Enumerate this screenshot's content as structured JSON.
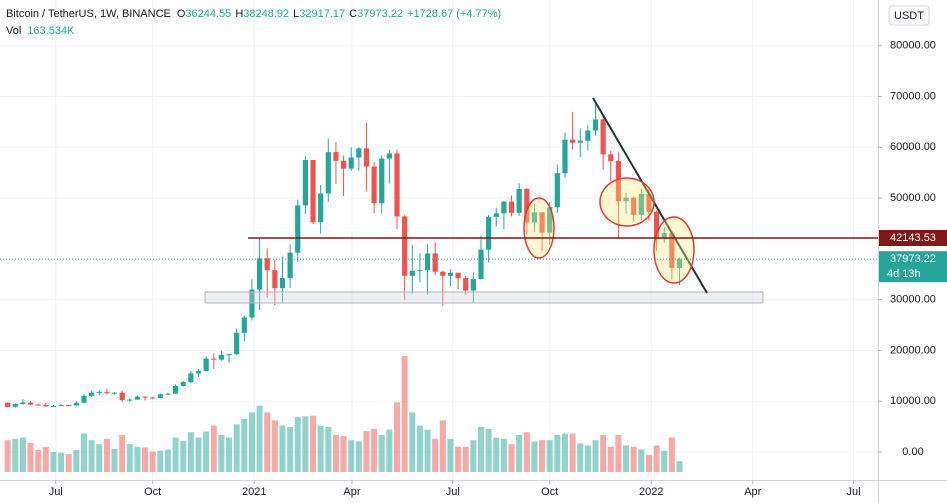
{
  "chart_data": {
    "type": "candlestick",
    "symbol": "Bitcoin / TetherUS, 1W, BINANCE",
    "ohlc_letters": [
      "O",
      "H",
      "L",
      "C"
    ],
    "change": "+1728.67 (+4.77%)",
    "volume_label": "Vol",
    "volume_value": "163.534K",
    "currency": "USDT",
    "countdown": "4d 13h",
    "level": 42143.53,
    "up_color": "#26a69a",
    "down_color": "#ef5350",
    "level_color": "#801818",
    "grid": true,
    "xlim": [
      -1,
      114
    ],
    "ylim": [
      -5500,
      89000
    ],
    "yticks": [
      {
        "value": 0,
        "label": "0.00"
      },
      {
        "value": 10000,
        "label": "10000.00"
      },
      {
        "value": 20000,
        "label": "20000.00"
      },
      {
        "value": 30000,
        "label": "30000.00"
      },
      {
        "value": 50000,
        "label": "50000.00"
      },
      {
        "value": 60000,
        "label": "60000.00"
      },
      {
        "value": 70000,
        "label": "70000.00"
      },
      {
        "value": 80000,
        "label": "80000.00"
      }
    ],
    "xticks": [
      {
        "value": 6.3,
        "label": "Jul"
      },
      {
        "value": 19,
        "label": "Oct"
      },
      {
        "value": 32.3,
        "label": "2021"
      },
      {
        "value": 45.1,
        "label": "Apr"
      },
      {
        "value": 58.3,
        "label": "Jul"
      },
      {
        "value": 71,
        "label": "Oct"
      },
      {
        "value": 84.3,
        "label": "2022"
      },
      {
        "value": 97.6,
        "label": "Apr"
      },
      {
        "value": 110.8,
        "label": "Jul"
      }
    ],
    "open": [
      9700,
      8900,
      9450,
      9750,
      9350,
      9300,
      9000,
      9070,
      9250,
      9160,
      9700,
      11050,
      11700,
      11850,
      11650,
      11700,
      10250,
      10330,
      10930,
      10750,
      10650,
      11360,
      11500,
      13030,
      13760,
      15480,
      15970,
      18400,
      18190,
      19150,
      19270,
      23480,
      26490,
      32000,
      38150,
      35800,
      32250,
      34250,
      39250,
      48570,
      57500,
      45250,
      50900,
      59050,
      57350,
      55800,
      58000,
      59800,
      56200,
      49000,
      57800,
      58800,
      46400,
      34700,
      35700,
      35800,
      39100,
      35500,
      34700,
      35300,
      34250,
      31800,
      34050,
      39850,
      46300,
      47000,
      49300,
      47100,
      51800,
      45200,
      47200,
      43200,
      48200,
      54900,
      61500,
      60900,
      61300,
      63300,
      65500,
      58600,
      57300,
      49400,
      50100,
      46700,
      50800,
      47300,
      41900,
      43100,
      36244.55
    ],
    "high": [
      9800,
      9600,
      10400,
      10000,
      9600,
      9700,
      9300,
      9450,
      9250,
      10000,
      11400,
      12000,
      12100,
      12500,
      11800,
      12100,
      10600,
      11100,
      11000,
      10900,
      11500,
      11700,
      13300,
      14000,
      15960,
      16400,
      18800,
      19400,
      19900,
      19400,
      24300,
      26900,
      34000,
      41900,
      40100,
      37900,
      38500,
      40900,
      49700,
      58300,
      57500,
      52600,
      61700,
      61000,
      58400,
      60000,
      60000,
      64800,
      57100,
      58400,
      59500,
      59600,
      46600,
      40800,
      39200,
      40900,
      41300,
      35700,
      36000,
      35300,
      34600,
      35400,
      42600,
      46700,
      48100,
      49400,
      50500,
      52900,
      52000,
      48800,
      47200,
      49200,
      56600,
      62900,
      67000,
      63700,
      64300,
      69000,
      66300,
      59300,
      59000,
      51000,
      50300,
      51900,
      52100,
      47600,
      44400,
      43500,
      38248.92
    ],
    "low": [
      8800,
      8700,
      9300,
      9200,
      9200,
      8900,
      8950,
      9050,
      9000,
      9100,
      9600,
      10900,
      11200,
      11300,
      11300,
      9900,
      9900,
      10300,
      10200,
      10400,
      10600,
      11200,
      11400,
      12900,
      13600,
      14800,
      15800,
      16300,
      18000,
      17600,
      19100,
      21800,
      25900,
      28000,
      30400,
      28900,
      29200,
      32300,
      37400,
      46900,
      44900,
      43000,
      49300,
      52800,
      50400,
      55400,
      55400,
      51300,
      47000,
      47000,
      52900,
      43900,
      30000,
      31200,
      33400,
      31000,
      34800,
      28800,
      32700,
      32100,
      31000,
      29300,
      34000,
      37300,
      44400,
      43900,
      46400,
      46500,
      42800,
      43400,
      39600,
      40800,
      47100,
      54000,
      59600,
      58100,
      59400,
      62300,
      55600,
      53300,
      42000,
      46900,
      45500,
      45600,
      45600,
      39600,
      41200,
      34000,
      32917.17
    ],
    "close": [
      8900,
      9450,
      9750,
      9350,
      9300,
      9000,
      9070,
      9250,
      9160,
      9700,
      11050,
      11700,
      11850,
      11650,
      11700,
      10250,
      10330,
      10930,
      10750,
      10650,
      11360,
      11500,
      13030,
      13760,
      15480,
      15970,
      18400,
      18190,
      19150,
      19270,
      23480,
      26490,
      32000,
      38150,
      35800,
      32250,
      34250,
      39250,
      48570,
      57500,
      45250,
      50900,
      59050,
      57350,
      55800,
      58000,
      59800,
      56200,
      49000,
      57800,
      58800,
      46400,
      34700,
      35700,
      35800,
      39100,
      35500,
      34700,
      35300,
      34250,
      31800,
      34050,
      39850,
      46300,
      47000,
      49300,
      47100,
      51800,
      45200,
      47200,
      43200,
      48200,
      54900,
      61500,
      60900,
      61300,
      63300,
      65500,
      58600,
      57300,
      49400,
      50100,
      46700,
      50800,
      47300,
      41900,
      43100,
      36280,
      37973.22
    ],
    "volume": [
      480000,
      500000,
      520000,
      440000,
      330000,
      380000,
      300000,
      290000,
      270000,
      330000,
      580000,
      480000,
      420000,
      500000,
      350000,
      560000,
      420000,
      380000,
      370000,
      310000,
      320000,
      340000,
      520000,
      470000,
      600000,
      520000,
      610000,
      700000,
      560000,
      520000,
      720000,
      800000,
      900000,
      1000000,
      900000,
      780000,
      700000,
      680000,
      830000,
      840000,
      850000,
      700000,
      680000,
      560000,
      540000,
      480000,
      460000,
      620000,
      650000,
      560000,
      640000,
      1050000,
      1750000,
      900000,
      700000,
      640000,
      500000,
      780000,
      500000,
      380000,
      380000,
      480000,
      680000,
      650000,
      520000,
      500000,
      420000,
      560000,
      600000,
      460000,
      480000,
      480000,
      560000,
      580000,
      580000,
      430000,
      400000,
      480000,
      560000,
      380000,
      560000,
      400000,
      380000,
      340000,
      260000,
      400000,
      320000,
      520000,
      163534
    ]
  }
}
